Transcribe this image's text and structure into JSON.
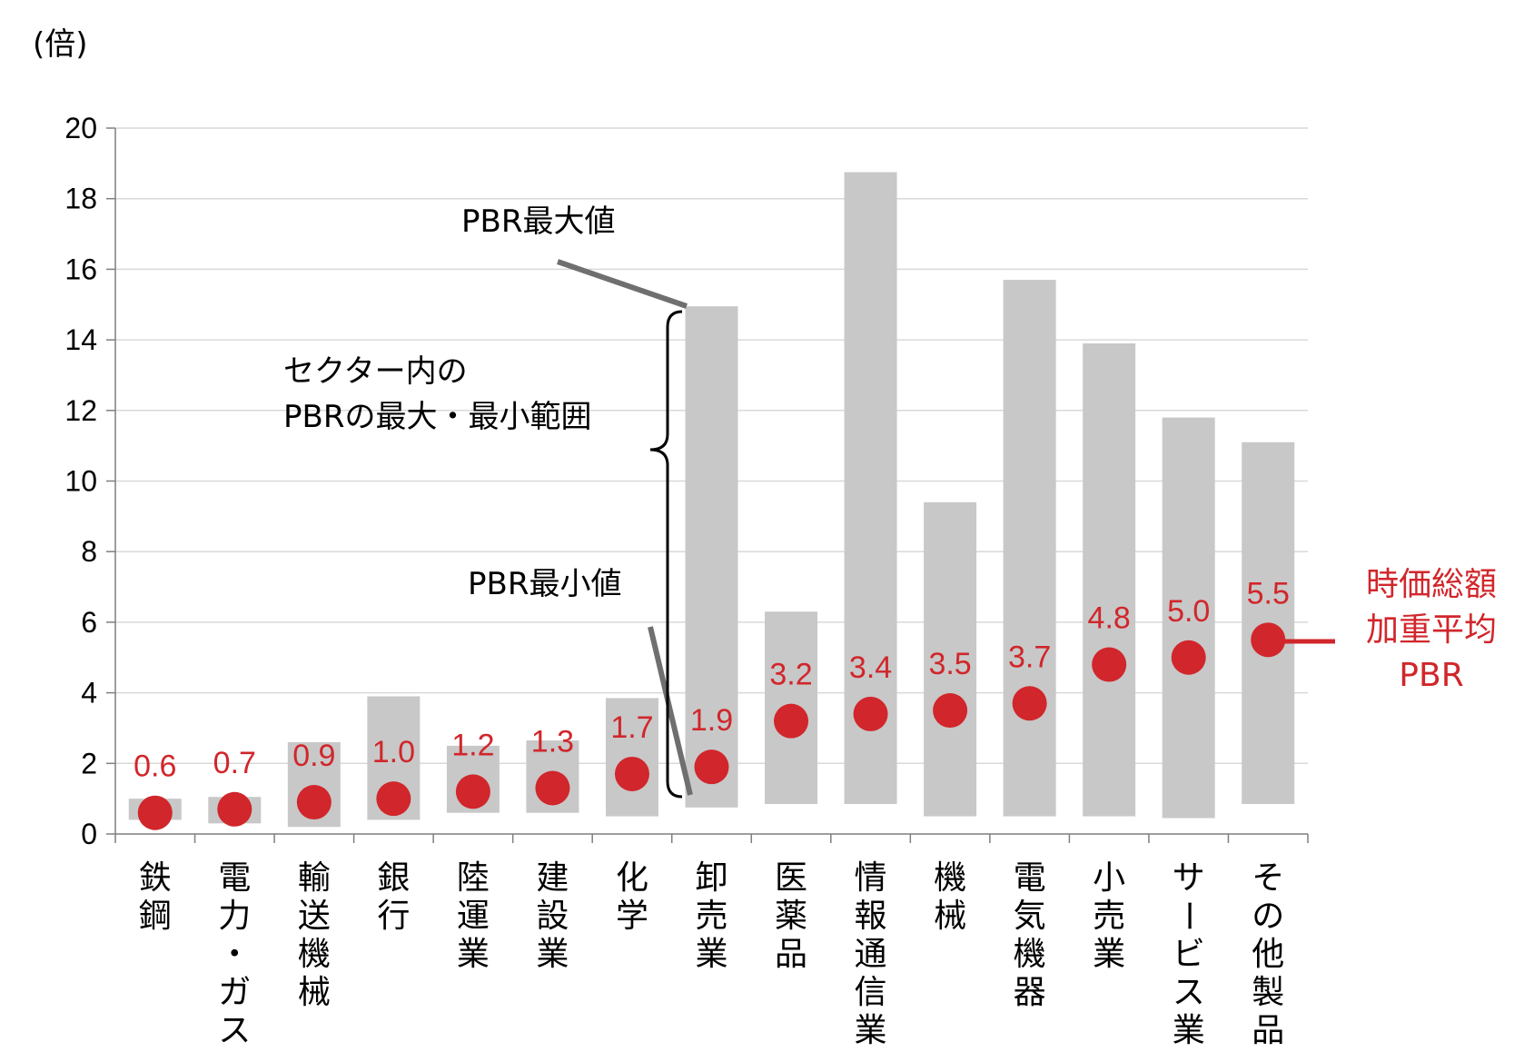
{
  "chart_data": {
    "type": "range-bar-with-markers",
    "unit_label": "(倍)",
    "ylim": [
      0,
      20
    ],
    "yticks": [
      "0",
      "2",
      "4",
      "6",
      "8",
      "10",
      "12",
      "14",
      "16",
      "18",
      "20"
    ],
    "grid": true,
    "categories": [
      [
        "鉄",
        "鋼"
      ],
      [
        "電",
        "力",
        "・",
        "ガ",
        "ス"
      ],
      [
        "輸",
        "送",
        "機",
        "械"
      ],
      [
        "銀",
        "行"
      ],
      [
        "陸",
        "運",
        "業"
      ],
      [
        "建",
        "設",
        "業"
      ],
      [
        "化",
        "学"
      ],
      [
        "卸",
        "売",
        "業"
      ],
      [
        "医",
        "薬",
        "品"
      ],
      [
        "情",
        "報",
        "通",
        "信",
        "業"
      ],
      [
        "機",
        "械"
      ],
      [
        "電",
        "気",
        "機",
        "器"
      ],
      [
        "小",
        "売",
        "業"
      ],
      [
        "サ",
        "ー",
        "ビ",
        "ス",
        "業"
      ],
      [
        "そ",
        "の",
        "他",
        "製",
        "品"
      ]
    ],
    "series": [
      {
        "name": "PBR最小値",
        "values": [
          0.4,
          0.3,
          0.2,
          0.4,
          0.6,
          0.6,
          0.5,
          0.75,
          0.85,
          0.85,
          0.5,
          0.5,
          0.5,
          0.45,
          0.85
        ]
      },
      {
        "name": "PBR最大値",
        "values": [
          1.0,
          1.05,
          2.6,
          3.9,
          2.5,
          2.65,
          3.85,
          14.95,
          6.3,
          18.75,
          9.4,
          15.7,
          13.9,
          11.8,
          11.1
        ]
      },
      {
        "name": "時価総額加重平均PBR",
        "values": [
          0.6,
          0.7,
          0.9,
          1.0,
          1.2,
          1.3,
          1.7,
          1.9,
          3.2,
          3.4,
          3.5,
          3.7,
          4.8,
          5.0,
          5.5
        ],
        "labels": [
          "0.6",
          "0.7",
          "0.9",
          "1.0",
          "1.2",
          "1.3",
          "1.7",
          "1.9",
          "3.2",
          "3.4",
          "3.5",
          "3.7",
          "4.8",
          "5.0",
          "5.5"
        ]
      }
    ],
    "annotations": {
      "max": "PBR最大値",
      "min": "PBR最小値",
      "range_line1": "セクター内の",
      "range_line2": "PBRの最大・最小範囲"
    },
    "legend": {
      "lines": [
        "時価総額",
        "加重平均",
        "PBR"
      ],
      "position": "right"
    },
    "colors": {
      "bar": "#c8c8c8",
      "marker": "#d1262b",
      "grid": "#d9d9d9",
      "axis": "#7f7f7f",
      "pointer": "#6f6f6f"
    }
  }
}
